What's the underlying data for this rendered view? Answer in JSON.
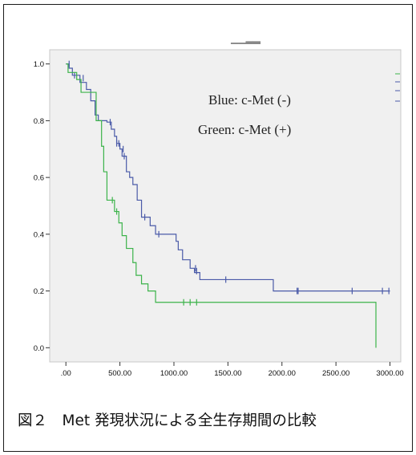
{
  "caption": "図２　Met 発現状況による全生存期間の比較",
  "chart_data": {
    "type": "line",
    "style": "step",
    "title": "",
    "xlabel": "",
    "ylabel": "",
    "xlim": [
      -150,
      3100
    ],
    "ylim": [
      -0.05,
      1.05
    ],
    "x_ticks": [
      0,
      500,
      1000,
      1500,
      2000,
      2500,
      3000
    ],
    "x_tick_labels": [
      ".00",
      "500.00",
      "1000.00",
      "1500.00",
      "2000.00",
      "2500.00",
      "3000.00"
    ],
    "y_ticks": [
      0.0,
      0.2,
      0.4,
      0.6,
      0.8,
      1.0
    ],
    "y_tick_labels": [
      "0.0",
      "0.2",
      "0.4",
      "0.6",
      "0.8",
      "1.0"
    ],
    "grid": false,
    "annotations": [
      "Blue: c-Met (-)",
      "Green: c-Met (+)"
    ],
    "series": [
      {
        "color": "#4a5aa8",
        "steps": [
          [
            0,
            1.0
          ],
          [
            30,
            0.985
          ],
          [
            60,
            0.96
          ],
          [
            130,
            0.935
          ],
          [
            190,
            0.91
          ],
          [
            230,
            0.87
          ],
          [
            270,
            0.82
          ],
          [
            300,
            0.8
          ],
          [
            380,
            0.795
          ],
          [
            420,
            0.77
          ],
          [
            450,
            0.745
          ],
          [
            470,
            0.72
          ],
          [
            500,
            0.7
          ],
          [
            520,
            0.675
          ],
          [
            560,
            0.62
          ],
          [
            590,
            0.6
          ],
          [
            620,
            0.575
          ],
          [
            660,
            0.52
          ],
          [
            700,
            0.46
          ],
          [
            780,
            0.43
          ],
          [
            830,
            0.4
          ],
          [
            940,
            0.4
          ],
          [
            1020,
            0.375
          ],
          [
            1040,
            0.345
          ],
          [
            1080,
            0.31
          ],
          [
            1150,
            0.28
          ],
          [
            1190,
            0.265
          ],
          [
            1240,
            0.24
          ],
          [
            1910,
            0.24
          ],
          [
            1920,
            0.2
          ],
          [
            3000,
            0.2
          ]
        ],
        "censored": [
          [
            30,
            1.0
          ],
          [
            80,
            0.96
          ],
          [
            160,
            0.95
          ],
          [
            410,
            0.795
          ],
          [
            470,
            0.72
          ],
          [
            490,
            0.72
          ],
          [
            530,
            0.7
          ],
          [
            540,
            0.675
          ],
          [
            730,
            0.46
          ],
          [
            860,
            0.4
          ],
          [
            1200,
            0.28
          ],
          [
            1210,
            0.27
          ],
          [
            1480,
            0.24
          ],
          [
            2140,
            0.2
          ],
          [
            2150,
            0.2
          ],
          [
            2650,
            0.2
          ],
          [
            2930,
            0.2
          ],
          [
            2990,
            0.2
          ]
        ],
        "end_x": 3000
      },
      {
        "color": "#3cb34a",
        "steps": [
          [
            0,
            1.0
          ],
          [
            20,
            0.97
          ],
          [
            100,
            0.945
          ],
          [
            140,
            0.9
          ],
          [
            280,
            0.8
          ],
          [
            330,
            0.71
          ],
          [
            350,
            0.62
          ],
          [
            380,
            0.52
          ],
          [
            450,
            0.48
          ],
          [
            490,
            0.44
          ],
          [
            520,
            0.395
          ],
          [
            560,
            0.35
          ],
          [
            620,
            0.3
          ],
          [
            650,
            0.255
          ],
          [
            700,
            0.225
          ],
          [
            760,
            0.2
          ],
          [
            830,
            0.16
          ],
          [
            2870,
            0.16
          ],
          [
            2870,
            0.0
          ]
        ],
        "censored": [
          [
            430,
            0.52
          ],
          [
            470,
            0.48
          ],
          [
            1090,
            0.16
          ],
          [
            1150,
            0.16
          ],
          [
            1210,
            0.16
          ]
        ],
        "end_x": 2870
      }
    ]
  }
}
